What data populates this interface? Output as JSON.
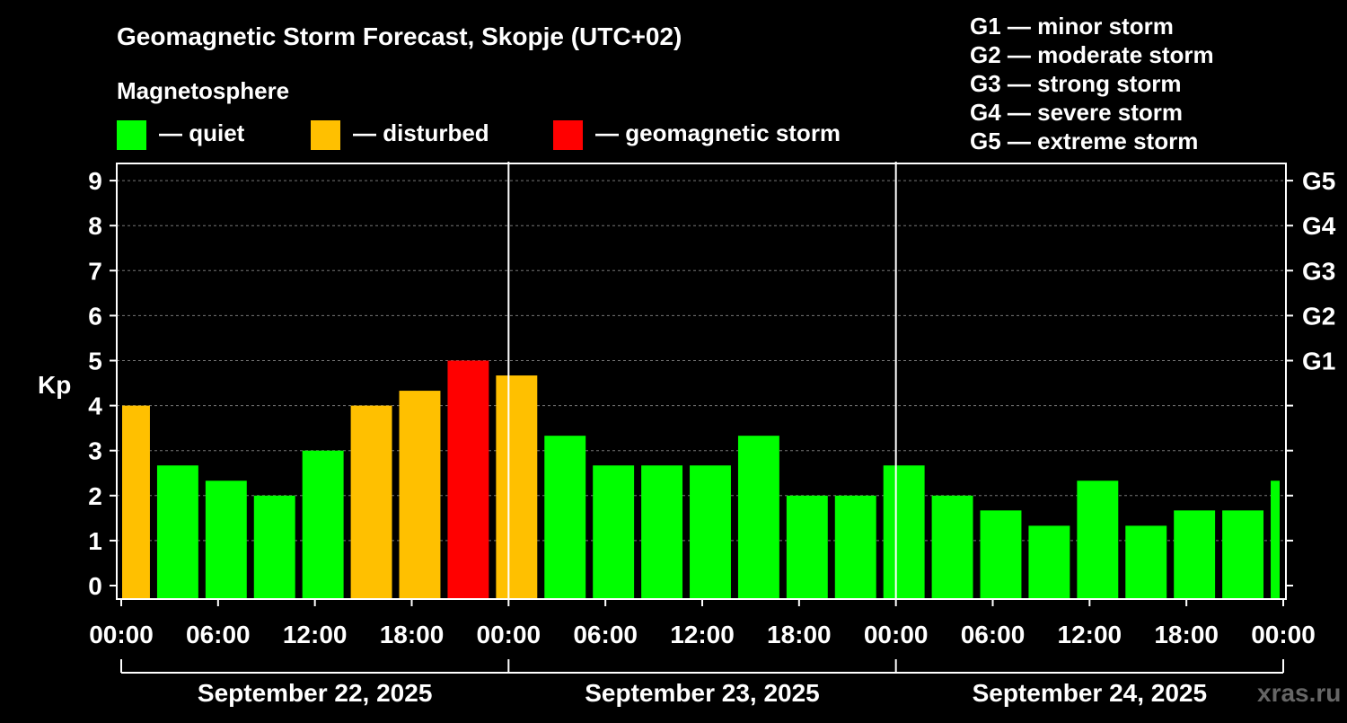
{
  "chart_data": {
    "type": "bar",
    "title": "Geomagnetic Storm Forecast, Skopje (UTC+02)",
    "legend_title": "Magnetosphere",
    "legend": [
      {
        "label": "— quiet",
        "color": "#00ff00"
      },
      {
        "label": "— disturbed",
        "color": "#ffc000"
      },
      {
        "label": "— geomagnetic storm",
        "color": "#ff0000"
      }
    ],
    "storm_scale": [
      "G1 — minor storm",
      "G2 — moderate storm",
      "G3 — strong storm",
      "G4 — severe storm",
      "G5 — extreme storm"
    ],
    "ylabel": "Kp",
    "ylim": [
      0,
      9
    ],
    "y_ticks": [
      "0",
      "1",
      "2",
      "3",
      "4",
      "5",
      "6",
      "7",
      "8",
      "9"
    ],
    "right_ticks": [
      {
        "kp": 5,
        "label": "G1"
      },
      {
        "kp": 6,
        "label": "G2"
      },
      {
        "kp": 7,
        "label": "G3"
      },
      {
        "kp": 8,
        "label": "G4"
      },
      {
        "kp": 9,
        "label": "G5"
      }
    ],
    "x_range_hours": [
      0,
      72
    ],
    "x_tick_labels": [
      "00:00",
      "06:00",
      "12:00",
      "18:00",
      "00:00",
      "06:00",
      "12:00",
      "18:00",
      "00:00",
      "06:00",
      "12:00",
      "18:00",
      "00:00"
    ],
    "days": [
      "September 22, 2025",
      "September 23, 2025",
      "September 24, 2025"
    ],
    "series": [
      {
        "name": "Kp",
        "intervals": [
          {
            "start": 0,
            "end": 2,
            "kp": 4.0,
            "level": "disturbed"
          },
          {
            "start": 2,
            "end": 5,
            "kp": 2.67,
            "level": "quiet"
          },
          {
            "start": 5,
            "end": 8,
            "kp": 2.33,
            "level": "quiet"
          },
          {
            "start": 8,
            "end": 11,
            "kp": 2.0,
            "level": "quiet"
          },
          {
            "start": 11,
            "end": 14,
            "kp": 3.0,
            "level": "quiet"
          },
          {
            "start": 14,
            "end": 17,
            "kp": 4.0,
            "level": "disturbed"
          },
          {
            "start": 17,
            "end": 20,
            "kp": 4.33,
            "level": "disturbed"
          },
          {
            "start": 20,
            "end": 23,
            "kp": 5.0,
            "level": "storm"
          },
          {
            "start": 23,
            "end": 26,
            "kp": 4.67,
            "level": "disturbed"
          },
          {
            "start": 26,
            "end": 29,
            "kp": 3.33,
            "level": "quiet"
          },
          {
            "start": 29,
            "end": 32,
            "kp": 2.67,
            "level": "quiet"
          },
          {
            "start": 32,
            "end": 35,
            "kp": 2.67,
            "level": "quiet"
          },
          {
            "start": 35,
            "end": 38,
            "kp": 2.67,
            "level": "quiet"
          },
          {
            "start": 38,
            "end": 41,
            "kp": 3.33,
            "level": "quiet"
          },
          {
            "start": 41,
            "end": 44,
            "kp": 2.0,
            "level": "quiet"
          },
          {
            "start": 44,
            "end": 47,
            "kp": 2.0,
            "level": "quiet"
          },
          {
            "start": 47,
            "end": 50,
            "kp": 2.67,
            "level": "quiet"
          },
          {
            "start": 50,
            "end": 53,
            "kp": 2.0,
            "level": "quiet"
          },
          {
            "start": 53,
            "end": 56,
            "kp": 1.67,
            "level": "quiet"
          },
          {
            "start": 56,
            "end": 59,
            "kp": 1.33,
            "level": "quiet"
          },
          {
            "start": 59,
            "end": 62,
            "kp": 2.33,
            "level": "quiet"
          },
          {
            "start": 62,
            "end": 65,
            "kp": 1.33,
            "level": "quiet"
          },
          {
            "start": 65,
            "end": 68,
            "kp": 1.67,
            "level": "quiet"
          },
          {
            "start": 68,
            "end": 71,
            "kp": 1.67,
            "level": "quiet"
          },
          {
            "start": 71,
            "end": 72,
            "kp": 2.33,
            "level": "quiet"
          }
        ]
      }
    ],
    "watermark": "xras.ru"
  }
}
